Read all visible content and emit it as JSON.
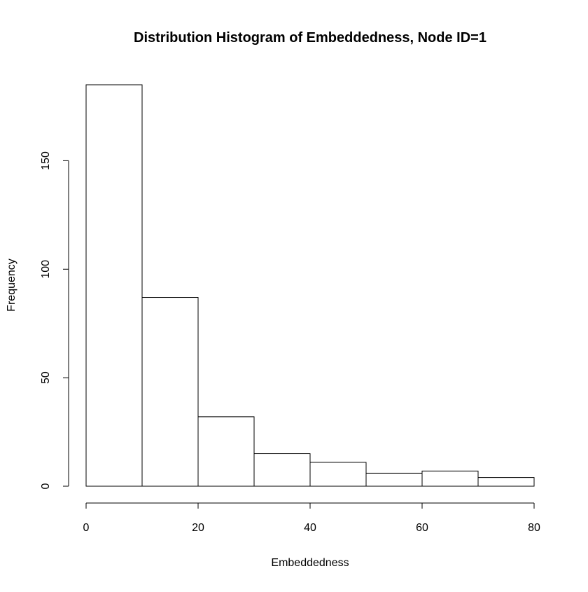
{
  "chart_data": {
    "type": "bar",
    "title": "Distribution Histogram of Embeddedness, Node ID=1",
    "xlabel": "Embeddedness",
    "ylabel": "Frequency",
    "bins": [
      {
        "start": 0,
        "end": 10,
        "count": 185
      },
      {
        "start": 10,
        "end": 20,
        "count": 87
      },
      {
        "start": 20,
        "end": 30,
        "count": 32
      },
      {
        "start": 30,
        "end": 40,
        "count": 15
      },
      {
        "start": 40,
        "end": 50,
        "count": 11
      },
      {
        "start": 50,
        "end": 60,
        "count": 6
      },
      {
        "start": 60,
        "end": 70,
        "count": 7
      },
      {
        "start": 70,
        "end": 80,
        "count": 4
      }
    ],
    "x_ticks": [
      0,
      20,
      40,
      60,
      80
    ],
    "y_ticks": [
      0,
      50,
      100,
      150
    ],
    "xlim": [
      0,
      80
    ],
    "ylim": [
      0,
      185
    ],
    "grid": false,
    "legend": "none",
    "bar_fill": "#ffffff",
    "bar_stroke": "#000000"
  }
}
